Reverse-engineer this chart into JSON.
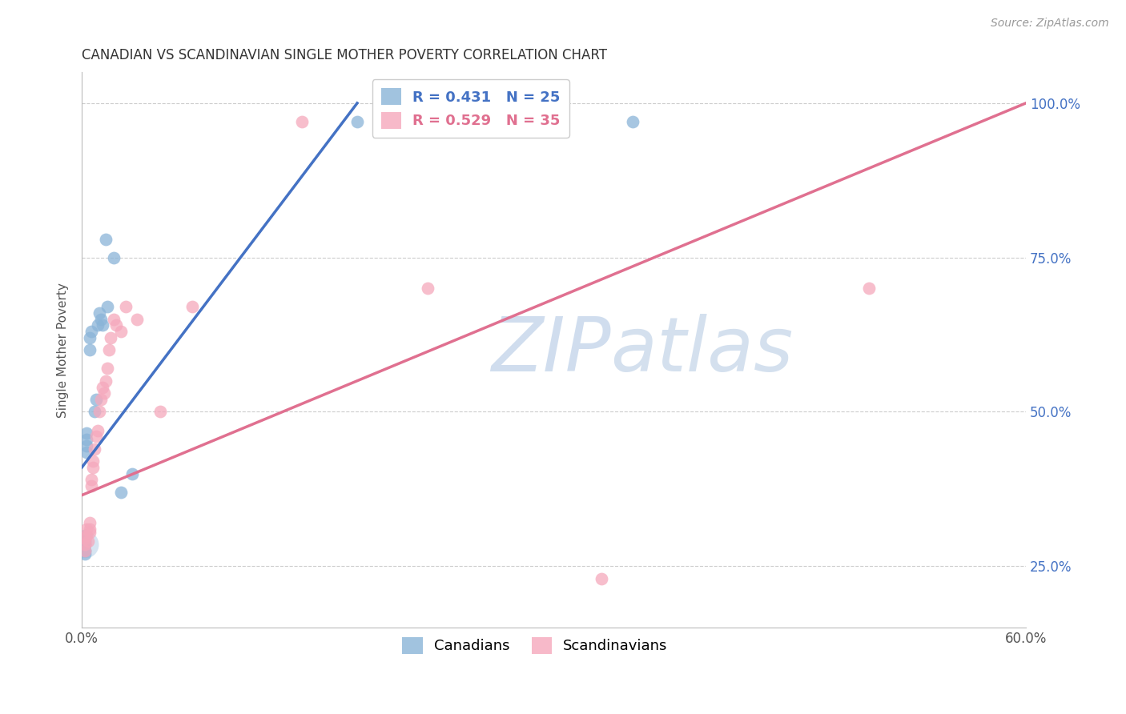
{
  "title": "CANADIAN VS SCANDINAVIAN SINGLE MOTHER POVERTY CORRELATION CHART",
  "source": "Source: ZipAtlas.com",
  "ylabel": "Single Mother Poverty",
  "xlim": [
    0.0,
    0.6
  ],
  "ylim": [
    0.15,
    1.05
  ],
  "canadian_color": "#8ab4d8",
  "scandinavian_color": "#f5a8bc",
  "canadian_R": 0.431,
  "canadian_N": 25,
  "scandinavian_R": 0.529,
  "scandinavian_N": 35,
  "watermark_color": "#dce8f5",
  "background_color": "#ffffff",
  "grid_color": "#cccccc",
  "right_axis_color": "#4472c4",
  "blue_line_color": "#4472c4",
  "pink_line_color": "#e07090",
  "blue_line": {
    "x0": 0.0,
    "y0": 0.41,
    "x1": 0.175,
    "y1": 1.0
  },
  "pink_line": {
    "x0": 0.0,
    "y0": 0.365,
    "x1": 0.6,
    "y1": 1.0
  },
  "canadians_x": [
    0.002,
    0.002,
    0.002,
    0.002,
    0.002,
    0.003,
    0.003,
    0.003,
    0.003,
    0.005,
    0.005,
    0.006,
    0.008,
    0.009,
    0.01,
    0.011,
    0.012,
    0.013,
    0.015,
    0.016,
    0.02,
    0.025,
    0.032,
    0.175,
    0.35
  ],
  "canadians_y": [
    0.3,
    0.29,
    0.285,
    0.275,
    0.27,
    0.465,
    0.455,
    0.445,
    0.435,
    0.62,
    0.6,
    0.63,
    0.5,
    0.52,
    0.64,
    0.66,
    0.65,
    0.64,
    0.78,
    0.67,
    0.75,
    0.37,
    0.4,
    0.97,
    0.97
  ],
  "scandinavians_x": [
    0.002,
    0.002,
    0.002,
    0.003,
    0.003,
    0.004,
    0.005,
    0.005,
    0.005,
    0.006,
    0.006,
    0.007,
    0.007,
    0.008,
    0.009,
    0.01,
    0.011,
    0.012,
    0.013,
    0.014,
    0.015,
    0.016,
    0.017,
    0.018,
    0.02,
    0.022,
    0.025,
    0.028,
    0.035,
    0.05,
    0.07,
    0.14,
    0.22,
    0.5,
    0.33
  ],
  "scandinavians_y": [
    0.295,
    0.285,
    0.275,
    0.31,
    0.3,
    0.29,
    0.32,
    0.31,
    0.305,
    0.39,
    0.38,
    0.42,
    0.41,
    0.44,
    0.46,
    0.47,
    0.5,
    0.52,
    0.54,
    0.53,
    0.55,
    0.57,
    0.6,
    0.62,
    0.65,
    0.64,
    0.63,
    0.67,
    0.65,
    0.5,
    0.67,
    0.97,
    0.7,
    0.7,
    0.23
  ],
  "cluster_x": [
    0.002
  ],
  "cluster_y": [
    0.285
  ],
  "xtick_show": [
    "0.0%",
    "60.0%"
  ],
  "ytick_right": [
    "25.0%",
    "50.0%",
    "75.0%",
    "100.0%"
  ],
  "ytick_right_vals": [
    0.25,
    0.5,
    0.75,
    1.0
  ]
}
